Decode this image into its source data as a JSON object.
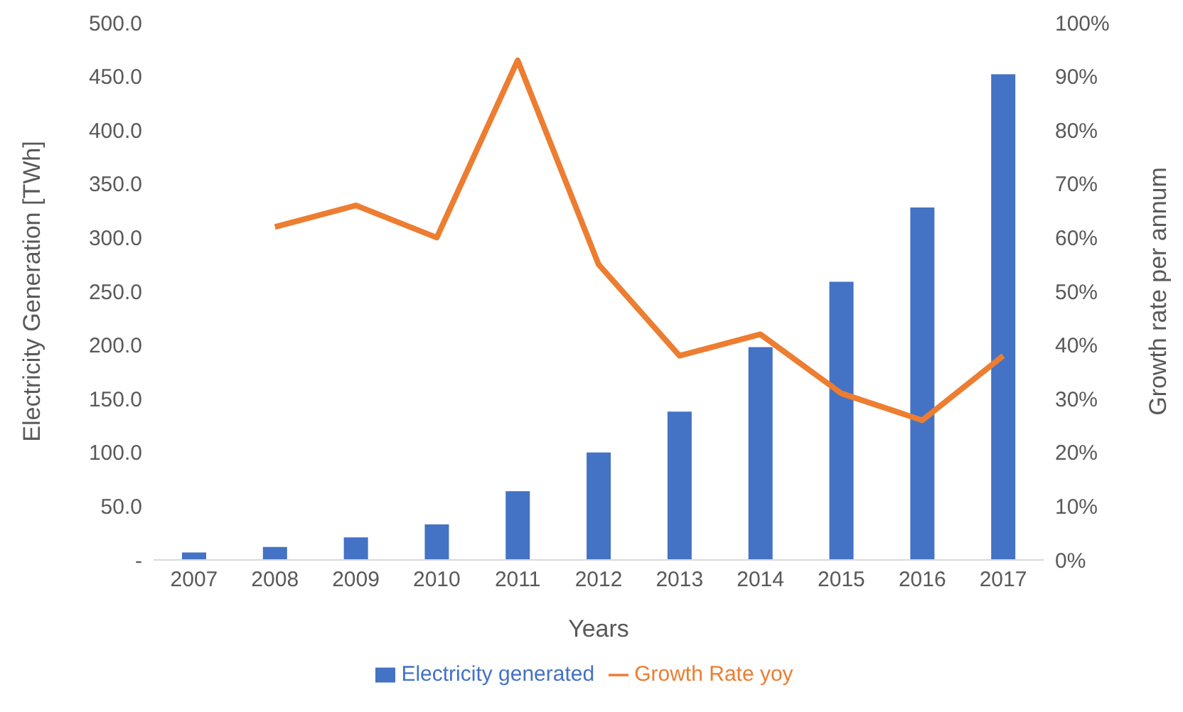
{
  "chart_data": {
    "type": "bar",
    "xlabel": "Years",
    "ylabel": "Electricity Generation [TWh]",
    "y2label": "Growth rate per annum",
    "categories": [
      "2007",
      "2008",
      "2009",
      "2010",
      "2011",
      "2012",
      "2013",
      "2014",
      "2015",
      "2016",
      "2017"
    ],
    "series": [
      {
        "name": "Electricity generated",
        "color": "#4472c4",
        "values": [
          7,
          12,
          21,
          33,
          64,
          100,
          138,
          198,
          259,
          328,
          452
        ]
      },
      {
        "name": "Growth Rate yoy",
        "type": "line",
        "axis": "y2",
        "color": "#ed7d31",
        "marker": "none",
        "values": [
          null,
          62,
          66,
          60,
          93,
          55,
          38,
          42,
          31,
          26,
          38
        ]
      }
    ],
    "ylim": [
      0,
      500
    ],
    "yticks": [
      {
        "value": 0,
        "label": "-"
      },
      {
        "value": 50,
        "label": "50.0"
      },
      {
        "value": 100,
        "label": "100.0"
      },
      {
        "value": 150,
        "label": "150.0"
      },
      {
        "value": 200,
        "label": "200.0"
      },
      {
        "value": 250,
        "label": "250.0"
      },
      {
        "value": 300,
        "label": "300.0"
      },
      {
        "value": 350,
        "label": "350.0"
      },
      {
        "value": 400,
        "label": "400.0"
      },
      {
        "value": 450,
        "label": "450.0"
      },
      {
        "value": 500,
        "label": "500.0"
      }
    ],
    "y2lim": [
      0,
      100
    ],
    "y2ticks": [
      {
        "value": 0,
        "label": "0%"
      },
      {
        "value": 10,
        "label": "10%"
      },
      {
        "value": 20,
        "label": "20%"
      },
      {
        "value": 30,
        "label": "30%"
      },
      {
        "value": 40,
        "label": "40%"
      },
      {
        "value": 50,
        "label": "50%"
      },
      {
        "value": 60,
        "label": "60%"
      },
      {
        "value": 70,
        "label": "70%"
      },
      {
        "value": 80,
        "label": "80%"
      },
      {
        "value": 90,
        "label": "90%"
      },
      {
        "value": 100,
        "label": "100%"
      }
    ],
    "grid": false,
    "legend": "bottom"
  }
}
